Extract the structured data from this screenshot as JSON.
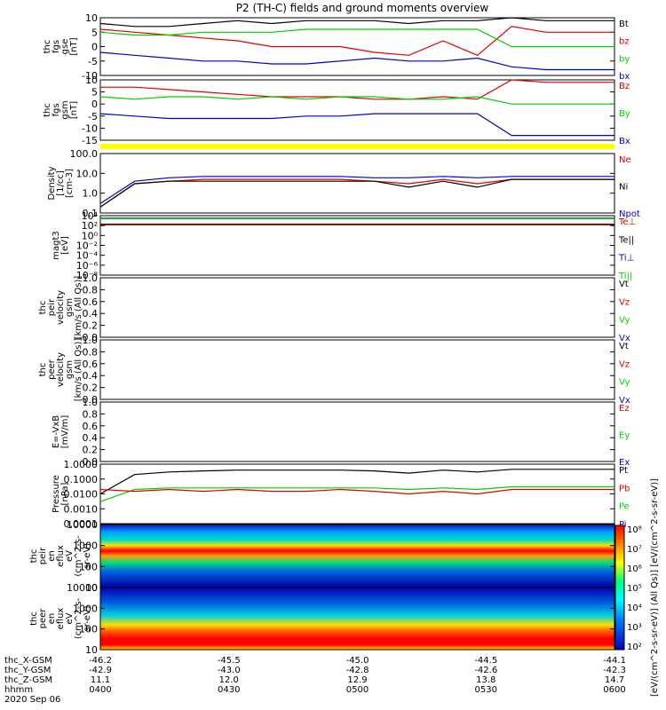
{
  "title": "P2 (TH-C) fields and ground moments overview",
  "colors": {
    "black": "#000000",
    "red": "#e00000",
    "green": "#00d000",
    "blue": "#0000d0",
    "yellow": "#ffff00"
  },
  "panels": [
    {
      "id": "fgs_gse",
      "ylabel": [
        "thc",
        "fgs",
        "gse",
        "[nT]"
      ],
      "ticks": [
        "10",
        "5",
        "0",
        "-5",
        "-10"
      ],
      "legend": [
        {
          "t": "Bt",
          "c": "black"
        },
        {
          "t": "bz",
          "c": "red"
        },
        {
          "t": "by",
          "c": "green"
        },
        {
          "t": "bx",
          "c": "blue"
        }
      ]
    },
    {
      "id": "fgs_gsm",
      "ylabel": [
        "thc",
        "fgs",
        "gsm",
        "[nT]"
      ],
      "ticks": [
        "10",
        "5",
        "0",
        "-5",
        "-10",
        "-15"
      ],
      "legend": [
        {
          "t": "Bz",
          "c": "red"
        },
        {
          "t": "By",
          "c": "green"
        },
        {
          "t": "Bx",
          "c": "blue"
        }
      ]
    },
    {
      "id": "density",
      "ylabel": [
        "Density",
        "[1/cc]",
        "[cm-3]"
      ],
      "ticks": [
        "100.0",
        "10.0",
        "1.0",
        "0.1"
      ],
      "legend": [
        {
          "t": "Ne",
          "c": "red"
        },
        {
          "t": "Ni",
          "c": "black"
        },
        {
          "t": "Npot",
          "c": "blue"
        }
      ]
    },
    {
      "id": "temp",
      "ylabel": [
        "magt3",
        "[eV]"
      ],
      "ticks": [
        "10⁴",
        "10²",
        "10⁰",
        "10⁻²",
        "10⁻⁴",
        "10⁻⁶",
        "10⁻⁸"
      ],
      "legend": [
        {
          "t": "Te⊥",
          "c": "red"
        },
        {
          "t": "Te||",
          "c": "black"
        },
        {
          "t": "Ti⊥",
          "c": "blue"
        },
        {
          "t": "Ti||",
          "c": "green"
        }
      ]
    },
    {
      "id": "peir_vel",
      "ylabel": [
        "thc",
        "peir",
        "velocity",
        "gsm",
        "[km/s (All Qs)]"
      ],
      "ticks": [
        "1.0",
        "0.8",
        "0.6",
        "0.4",
        "0.2",
        "0.0"
      ],
      "legend": [
        {
          "t": "Vt",
          "c": "black"
        },
        {
          "t": "Vz",
          "c": "red"
        },
        {
          "t": "Vy",
          "c": "green"
        },
        {
          "t": "Vx",
          "c": "blue"
        }
      ]
    },
    {
      "id": "peer_vel",
      "ylabel": [
        "thc",
        "peer",
        "velocity",
        "gsm",
        "[km/s (All Qs)]"
      ],
      "ticks": [
        "1.0",
        "0.8",
        "0.6",
        "0.4",
        "0.2",
        "0.0"
      ],
      "legend": [
        {
          "t": "Vt",
          "c": "black"
        },
        {
          "t": "Vz",
          "c": "red"
        },
        {
          "t": "Vy",
          "c": "green"
        },
        {
          "t": "Vx",
          "c": "blue"
        }
      ]
    },
    {
      "id": "efield",
      "ylabel": [
        "E=-VxB",
        "[mV/m]"
      ],
      "ticks": [
        "1.0",
        "0.8",
        "0.6",
        "0.4",
        "0.2",
        "0.0"
      ],
      "legend": [
        {
          "t": "Ez",
          "c": "red"
        },
        {
          "t": "Ey",
          "c": "green"
        },
        {
          "t": "Ex",
          "c": "blue"
        }
      ]
    },
    {
      "id": "pressure",
      "ylabel": [
        "Pressure",
        "[nPa]"
      ],
      "ticks": [
        "1.0000",
        "0.1000",
        "0.0100",
        "0.0010",
        "0.0001"
      ],
      "legend": [
        {
          "t": "Pt",
          "c": "black"
        },
        {
          "t": "Pb",
          "c": "red"
        },
        {
          "t": "Pe",
          "c": "green"
        },
        {
          "t": "Pi",
          "c": "blue"
        }
      ]
    },
    {
      "id": "peir_spec",
      "ylabel": [
        "thc",
        "peir",
        "en",
        "eflux",
        "eV",
        "(cm^2-s-",
        "sr-eV)"
      ],
      "ticks": [
        "10000",
        "1000",
        "100",
        "10"
      ]
    },
    {
      "id": "peer_spec",
      "ylabel": [
        "thc",
        "peer",
        "en",
        "eflux",
        "eV",
        "(cm^2-s-",
        "sr-eV)"
      ],
      "ticks": [
        "10000",
        "1000",
        "100",
        "10"
      ]
    }
  ],
  "colorbar": {
    "ticks": [
      "10⁸",
      "10⁷",
      "10⁶",
      "10⁵",
      "10⁴",
      "10³",
      "10²"
    ],
    "label": "[eV/(cm^2-s-sr-eV)] (All Qs)] [eV/(cm^2-s-sr-eV)]"
  },
  "x_axis": {
    "row_labels": [
      "thc_X-GSM",
      "thc_Y-GSM",
      "thc_Z-GSM",
      "hhmm",
      "2020 Sep 06"
    ],
    "columns": [
      {
        "x": "-46.2",
        "y": "-42.9",
        "z": "11.1",
        "t": "0400"
      },
      {
        "x": "-45.5",
        "y": "-43.0",
        "z": "12.0",
        "t": "0430"
      },
      {
        "x": "-45.0",
        "y": "-42.8",
        "z": "12.9",
        "t": "0500"
      },
      {
        "x": "-44.5",
        "y": "-42.6",
        "z": "13.8",
        "t": "0530"
      },
      {
        "x": "-44.1",
        "y": "-42.3",
        "z": "14.7",
        "t": "0600"
      }
    ]
  },
  "chart_data": [
    {
      "type": "line",
      "panel": "fgs_gse",
      "ylim": [
        -10,
        10
      ],
      "series": [
        {
          "name": "Bt",
          "c": "black",
          "values": [
            8,
            7,
            7,
            8,
            9,
            8,
            9,
            9,
            9,
            8,
            9,
            9,
            10,
            9,
            9,
            9
          ]
        },
        {
          "name": "bz",
          "c": "red",
          "values": [
            6,
            5,
            4,
            3,
            2,
            0,
            0,
            0,
            -2,
            -3,
            2,
            -3,
            7,
            5,
            5,
            5
          ]
        },
        {
          "name": "by",
          "c": "green",
          "values": [
            5,
            4,
            4,
            5,
            5,
            5,
            6,
            6,
            6,
            6,
            6,
            6,
            0,
            0,
            0,
            0
          ]
        },
        {
          "name": "bx",
          "c": "blue",
          "values": [
            -2,
            -3,
            -4,
            -5,
            -5,
            -6,
            -6,
            -5,
            -4,
            -5,
            -5,
            -4,
            -7,
            -8,
            -8,
            -8
          ]
        }
      ]
    },
    {
      "type": "line",
      "panel": "fgs_gsm",
      "ylim": [
        -15,
        10
      ],
      "series": [
        {
          "name": "Bz",
          "c": "red",
          "values": [
            7,
            7,
            6,
            5,
            4,
            3,
            3,
            3,
            2,
            2,
            3,
            2,
            10,
            9,
            9,
            9
          ]
        },
        {
          "name": "By",
          "c": "green",
          "values": [
            3,
            2,
            3,
            3,
            2,
            3,
            2,
            3,
            3,
            2,
            2,
            3,
            0,
            0,
            0,
            0
          ]
        },
        {
          "name": "Bx",
          "c": "blue",
          "values": [
            -4,
            -5,
            -6,
            -6,
            -6,
            -6,
            -5,
            -5,
            -4,
            -4,
            -4,
            -4,
            -13,
            -13,
            -13,
            -13
          ]
        }
      ]
    },
    {
      "type": "line",
      "panel": "density",
      "log": true,
      "ylim": [
        0.1,
        100
      ],
      "series": [
        {
          "name": "Npot",
          "c": "blue",
          "values": [
            0.3,
            4,
            6,
            7,
            7,
            7,
            7,
            7,
            6,
            6,
            7,
            6,
            7,
            7,
            7,
            7
          ]
        },
        {
          "name": "Ne",
          "c": "red",
          "values": [
            0.2,
            3,
            4,
            5,
            5,
            5,
            5,
            5,
            4,
            3,
            5,
            3,
            5,
            5,
            5,
            5
          ]
        },
        {
          "name": "Ni",
          "c": "black",
          "values": [
            0.2,
            3,
            4,
            4,
            4,
            4,
            4,
            4,
            4,
            2,
            4,
            2,
            5,
            5,
            5,
            5
          ]
        }
      ]
    },
    {
      "type": "line",
      "panel": "temp",
      "log": true,
      "ylim": [
        1e-08,
        10000.0
      ],
      "series": [
        {
          "name": "Ti⊥",
          "c": "blue",
          "values": [
            3000,
            3000,
            3000,
            3000,
            3000,
            3000,
            3000,
            3000,
            3000,
            3000,
            3000,
            3000,
            3000,
            3000,
            3000,
            3000
          ]
        },
        {
          "name": "Ti||",
          "c": "green",
          "values": [
            2500,
            2500,
            2500,
            2500,
            2500,
            2500,
            2500,
            2500,
            2500,
            2500,
            2500,
            2500,
            2500,
            2500,
            2500,
            2500
          ]
        },
        {
          "name": "Te⊥",
          "c": "red",
          "values": [
            200,
            200,
            200,
            200,
            200,
            200,
            200,
            200,
            200,
            200,
            200,
            200,
            200,
            200,
            200,
            200
          ]
        },
        {
          "name": "Te||",
          "c": "black",
          "values": [
            150,
            150,
            150,
            150,
            150,
            150,
            150,
            150,
            150,
            150,
            150,
            150,
            150,
            150,
            150,
            150
          ]
        }
      ]
    },
    {
      "type": "line",
      "panel": "pressure",
      "log": true,
      "ylim": [
        0.0001,
        1
      ],
      "series": [
        {
          "name": "Pt",
          "c": "black",
          "values": [
            0.01,
            0.2,
            0.3,
            0.35,
            0.4,
            0.4,
            0.4,
            0.4,
            0.35,
            0.25,
            0.4,
            0.3,
            0.45,
            0.45,
            0.45,
            0.45
          ]
        },
        {
          "name": "Pe",
          "c": "green",
          "values": [
            0.003,
            0.02,
            0.025,
            0.025,
            0.025,
            0.025,
            0.025,
            0.025,
            0.025,
            0.02,
            0.025,
            0.02,
            0.03,
            0.03,
            0.03,
            0.03
          ]
        },
        {
          "name": "Pb",
          "c": "red",
          "values": [
            0.02,
            0.015,
            0.02,
            0.015,
            0.02,
            0.015,
            0.015,
            0.02,
            0.015,
            0.01,
            0.015,
            0.01,
            0.02,
            0.02,
            0.02,
            0.02
          ]
        }
      ]
    }
  ]
}
